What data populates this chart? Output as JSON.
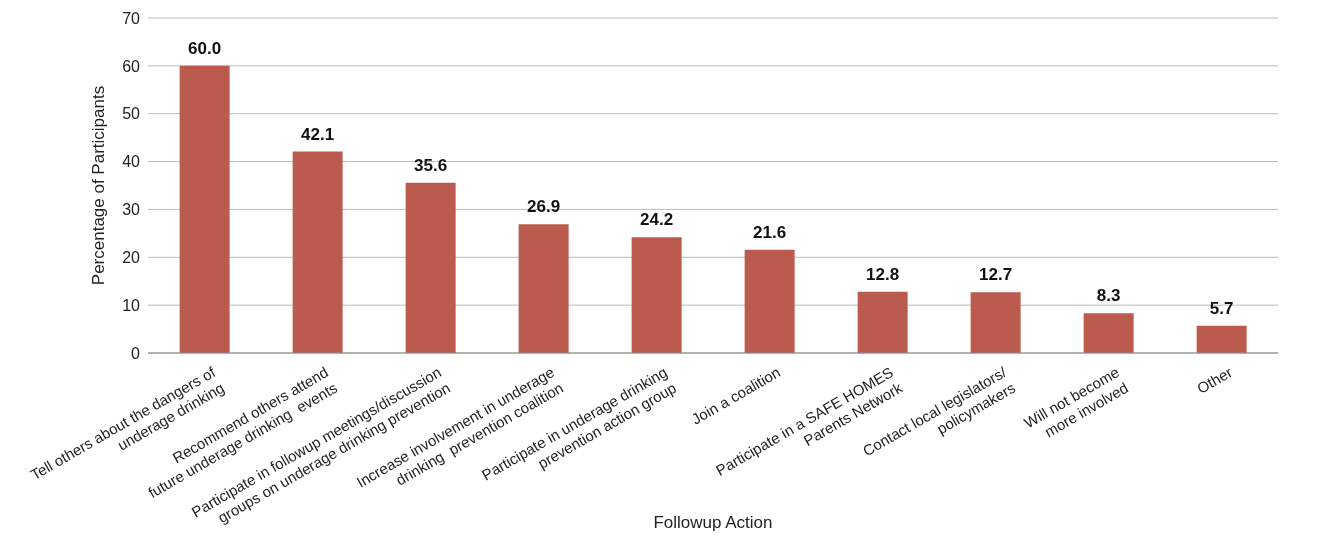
{
  "chart_data": {
    "type": "bar",
    "xlabel": "Followup Action",
    "ylabel": "Percentage of Participants",
    "categories": [
      "Tell others about the dangers of\nunderage drinking",
      "Recommend others attend\nfuture underage drinking  events",
      "Participate in followup meetings/discussion\ngroups on underage drinking prevention",
      "Increase involvement in underage\ndrinking  prevention coalition",
      "Participate in underage drinking\nprevention action group",
      "Join a coalition",
      "Participate in a SAFE HOMES\nParents Network",
      "Contact local legislators/\npolicymakers",
      "Will not become\nmore involved",
      "Other"
    ],
    "values": [
      60.0,
      42.1,
      35.6,
      26.9,
      24.2,
      21.6,
      12.8,
      12.7,
      8.3,
      5.7
    ],
    "color": "#bb5b4d",
    "ylim": [
      0,
      70
    ],
    "yticks": [
      0,
      10,
      20,
      30,
      40,
      50,
      60,
      70
    ],
    "grid": "y",
    "legend": false,
    "value_labels": [
      "60.0",
      "42.1",
      "35.6",
      "26.9",
      "24.2",
      "21.6",
      "12.8",
      "12.7",
      "8.3",
      "5.7"
    ]
  }
}
